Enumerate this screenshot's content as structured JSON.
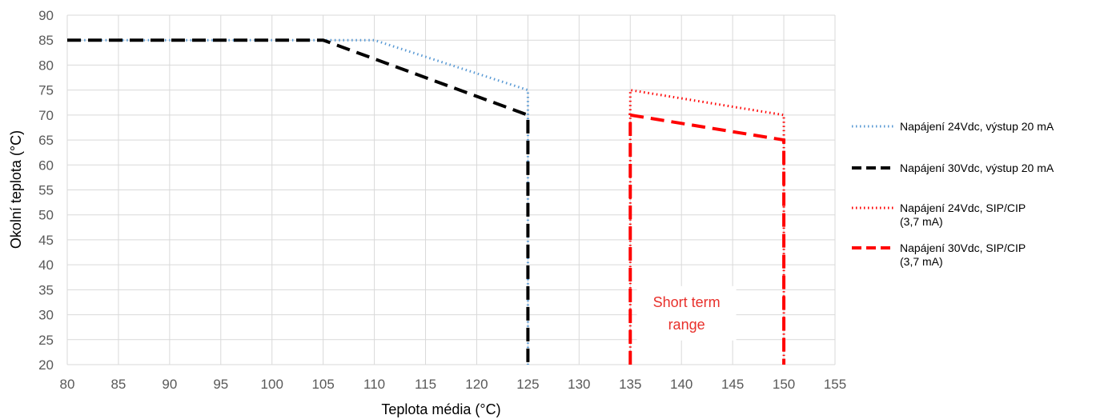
{
  "chart_data": {
    "type": "line",
    "title": "",
    "xlabel": "Teplota média (°C)",
    "ylabel": "Okolní teplota (°C)",
    "xlim": [
      80,
      155
    ],
    "ylim": [
      20,
      90
    ],
    "xticks": [
      "80",
      "85",
      "90",
      "95",
      "100",
      "105",
      "110",
      "115",
      "120",
      "125",
      "130",
      "135",
      "140",
      "145",
      "150",
      "155"
    ],
    "yticks": [
      "20",
      "25",
      "30",
      "35",
      "40",
      "45",
      "50",
      "55",
      "60",
      "65",
      "70",
      "75",
      "80",
      "85",
      "90"
    ],
    "grid": true,
    "legend_position": "right",
    "annotation": {
      "lines": [
        "Short term",
        "range"
      ],
      "x": 140.5,
      "y": 29
    },
    "series": [
      {
        "name": "Napájení 24Vdc, výstup 20 mA",
        "color": "#5b9bd5",
        "style": "dotted",
        "x": [
          80,
          110,
          125,
          125
        ],
        "y": [
          85,
          85,
          75,
          20
        ]
      },
      {
        "name": "Napájení 30Vdc, výstup 20 mA",
        "color": "#000000",
        "style": "dashed",
        "x": [
          80,
          105,
          125,
          125
        ],
        "y": [
          85,
          85,
          70,
          20
        ]
      },
      {
        "name": "Napájení 24Vdc, SIP/CIP (3,7 mA)",
        "color": "#ff0000",
        "style": "dotted",
        "x": [
          135,
          135,
          150,
          150
        ],
        "y": [
          20,
          75,
          70,
          20
        ]
      },
      {
        "name": "Napájení 30Vdc, SIP/CIP (3,7 mA)",
        "color": "#ff0000",
        "style": "dashed",
        "x": [
          135,
          135,
          150,
          150
        ],
        "y": [
          20,
          70,
          65,
          20
        ]
      }
    ],
    "legend": [
      {
        "lines": [
          "Napájení 24Vdc, výstup 20 mA"
        ],
        "color": "#5b9bd5",
        "style": "dotted"
      },
      {
        "lines": [
          "Napájení 30Vdc, výstup 20 mA"
        ],
        "color": "#000000",
        "style": "dashed"
      },
      {
        "lines": [
          "Napájení 24Vdc, SIP/CIP",
          "(3,7 mA)"
        ],
        "color": "#ff0000",
        "style": "dotted"
      },
      {
        "lines": [
          "Napájení 30Vdc, SIP/CIP",
          "(3,7 mA)"
        ],
        "color": "#ff0000",
        "style": "dashed"
      }
    ]
  }
}
